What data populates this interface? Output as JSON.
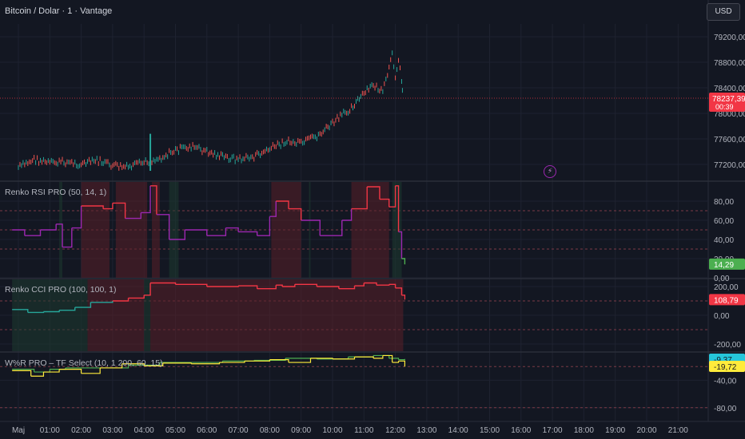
{
  "header": {
    "title": "Bitcoin / Dolar · 1 · Vantage",
    "currency_button": "USD"
  },
  "price_pane": {
    "axis_ticks": [
      "79200,00",
      "78800,00",
      "78400,00",
      "78000,00",
      "77600,00",
      "77200,00"
    ],
    "axis_tick_values": [
      79200,
      78800,
      78400,
      78000,
      77600,
      77200
    ],
    "last_price": "78237,39",
    "countdown": "00:39",
    "last_price_color": "#f23645",
    "event_icon": "lightning-bolt-icon",
    "trend_path": [
      [
        0.0,
        77150
      ],
      [
        0.5,
        77280
      ],
      [
        1.0,
        77220
      ],
      [
        1.5,
        77240
      ],
      [
        2.0,
        77200
      ],
      [
        2.5,
        77260
      ],
      [
        3.0,
        77180
      ],
      [
        3.5,
        77150
      ],
      [
        4.0,
        77230
      ],
      [
        4.5,
        77300
      ],
      [
        5.0,
        77420
      ],
      [
        5.5,
        77480
      ],
      [
        6.0,
        77400
      ],
      [
        6.5,
        77320
      ],
      [
        7.0,
        77280
      ],
      [
        7.5,
        77320
      ],
      [
        8.0,
        77440
      ],
      [
        8.5,
        77560
      ],
      [
        9.0,
        77520
      ],
      [
        9.5,
        77640
      ],
      [
        10.0,
        77840
      ],
      [
        10.5,
        78050
      ],
      [
        11.0,
        78300
      ],
      [
        11.3,
        78450
      ],
      [
        11.6,
        78320
      ],
      [
        11.8,
        78700
      ],
      [
        11.9,
        78900
      ],
      [
        12.0,
        78600
      ],
      [
        12.1,
        78850
      ],
      [
        12.2,
        78500
      ],
      [
        12.25,
        78237
      ]
    ],
    "spike": {
      "x": 4.2,
      "low": 77100,
      "high": 77680
    }
  },
  "rsi_pane": {
    "label": "Renko RSI PRO (50, 14, 1)",
    "axis_ticks": [
      "80,00",
      "60,00",
      "40,00",
      "20,00",
      "0,00"
    ],
    "axis_tick_values": [
      80,
      60,
      40,
      20,
      0
    ],
    "last_value": "14,29",
    "last_value_color": "#4caf50",
    "path": [
      [
        -0.2,
        50
      ],
      [
        0.2,
        44
      ],
      [
        0.7,
        50
      ],
      [
        1.2,
        56
      ],
      [
        1.4,
        32
      ],
      [
        1.7,
        52
      ],
      [
        2.0,
        75
      ],
      [
        2.7,
        72
      ],
      [
        3.0,
        78
      ],
      [
        3.4,
        62
      ],
      [
        3.9,
        68
      ],
      [
        4.2,
        96
      ],
      [
        4.4,
        66
      ],
      [
        4.8,
        40
      ],
      [
        5.3,
        50
      ],
      [
        6.0,
        44
      ],
      [
        6.6,
        52
      ],
      [
        7.0,
        48
      ],
      [
        7.6,
        44
      ],
      [
        8.0,
        64
      ],
      [
        8.2,
        80
      ],
      [
        8.6,
        72
      ],
      [
        9.0,
        60
      ],
      [
        9.6,
        44
      ],
      [
        10.3,
        60
      ],
      [
        10.6,
        72
      ],
      [
        11.1,
        95
      ],
      [
        11.5,
        82
      ],
      [
        11.8,
        74
      ],
      [
        12.0,
        96
      ],
      [
        12.1,
        48
      ],
      [
        12.2,
        20
      ],
      [
        12.3,
        14
      ]
    ],
    "red_zones": [
      [
        2.0,
        2.9
      ],
      [
        3.1,
        4.1
      ],
      [
        4.25,
        4.5
      ],
      [
        8.05,
        9.0
      ],
      [
        10.6,
        11.8
      ]
    ],
    "green_zones": [
      [
        1.3,
        1.4
      ],
      [
        4.8,
        5.1
      ],
      [
        9.25,
        9.3
      ],
      [
        11.9,
        12.2
      ]
    ]
  },
  "cci_pane": {
    "label": "Renko CCI PRO (100, 100, 1)",
    "axis_ticks": [
      "200,00",
      "0,00",
      "-200,00"
    ],
    "axis_tick_values": [
      200,
      0,
      -200
    ],
    "last_value": "108,79",
    "last_value_color": "#f23645",
    "path": [
      [
        -0.2,
        40
      ],
      [
        0.3,
        20
      ],
      [
        0.8,
        25
      ],
      [
        1.3,
        35
      ],
      [
        1.8,
        55
      ],
      [
        2.3,
        90
      ],
      [
        3.0,
        100
      ],
      [
        3.5,
        120
      ],
      [
        4.0,
        140
      ],
      [
        4.2,
        225
      ],
      [
        5.0,
        215
      ],
      [
        6.0,
        200
      ],
      [
        7.0,
        205
      ],
      [
        7.6,
        185
      ],
      [
        8.2,
        210
      ],
      [
        8.4,
        200
      ],
      [
        8.8,
        215
      ],
      [
        9.5,
        200
      ],
      [
        10.2,
        185
      ],
      [
        10.7,
        205
      ],
      [
        11.0,
        225
      ],
      [
        11.4,
        210
      ],
      [
        11.8,
        215
      ],
      [
        12.0,
        190
      ],
      [
        12.2,
        140
      ],
      [
        12.3,
        109
      ]
    ],
    "red_zones": [
      [
        2.2,
        4.0
      ],
      [
        4.2,
        12.25
      ]
    ],
    "green_zones": [
      [
        -0.2,
        2.2
      ],
      [
        4.0,
        4.2
      ]
    ]
  },
  "wr_pane": {
    "label": "W%R PRO – TF Select (10, 1 200, 60, 15)",
    "axis_ticks": [
      "-40,00",
      "-80,00"
    ],
    "axis_tick_values": [
      -40,
      -80
    ],
    "last_values": [
      "-9,37",
      "-19,72"
    ],
    "last_value_colors": [
      "#26c6da",
      "#ffeb3b"
    ],
    "series": [
      {
        "color": "#4caf50",
        "path": [
          [
            -0.2,
            -24
          ],
          [
            0.5,
            -28
          ],
          [
            1.0,
            -24
          ],
          [
            1.5,
            -22
          ],
          [
            2.5,
            -22
          ],
          [
            3.5,
            -18
          ],
          [
            4.5,
            -14
          ],
          [
            5.5,
            -14
          ],
          [
            6.5,
            -12
          ],
          [
            7.5,
            -11
          ],
          [
            8.5,
            -8
          ],
          [
            9.5,
            -9
          ],
          [
            10.5,
            -6
          ],
          [
            11.3,
            -4
          ],
          [
            11.8,
            -8
          ],
          [
            12.1,
            -10
          ],
          [
            12.3,
            -9
          ]
        ]
      },
      {
        "color": "#ffeb3b",
        "path": [
          [
            -0.2,
            -26
          ],
          [
            0.4,
            -34
          ],
          [
            0.8,
            -28
          ],
          [
            1.3,
            -24
          ],
          [
            2.0,
            -30
          ],
          [
            2.6,
            -22
          ],
          [
            3.3,
            -16
          ],
          [
            4.0,
            -19
          ],
          [
            4.6,
            -15
          ],
          [
            5.5,
            -16
          ],
          [
            6.4,
            -14
          ],
          [
            7.2,
            -12
          ],
          [
            8.0,
            -10
          ],
          [
            8.6,
            -14
          ],
          [
            9.3,
            -8
          ],
          [
            10.0,
            -9
          ],
          [
            10.7,
            -6
          ],
          [
            11.3,
            -8
          ],
          [
            11.6,
            -4
          ],
          [
            11.9,
            -14
          ],
          [
            12.1,
            -12
          ],
          [
            12.3,
            -20
          ]
        ]
      }
    ]
  },
  "time_axis": [
    "Maj",
    "01:00",
    "02:00",
    "03:00",
    "04:00",
    "05:00",
    "06:00",
    "07:00",
    "08:00",
    "09:00",
    "10:00",
    "11:00",
    "12:00",
    "13:00",
    "14:00",
    "15:00",
    "16:00",
    "17:00",
    "18:00",
    "19:00",
    "20:00",
    "21:00"
  ],
  "colors": {
    "background": "#131722",
    "grid": "#1e2230",
    "pane_border": "#2a2e39",
    "up": "#26a69a",
    "down": "#ef5350",
    "rsi_line_hi": "#f23645",
    "rsi_line_mid": "#9c27b0",
    "rsi_line_lo": "#4caf50",
    "zone_red": "#5a1f28",
    "zone_green": "#1d3b2f",
    "axis_text": "#b2b5be"
  }
}
